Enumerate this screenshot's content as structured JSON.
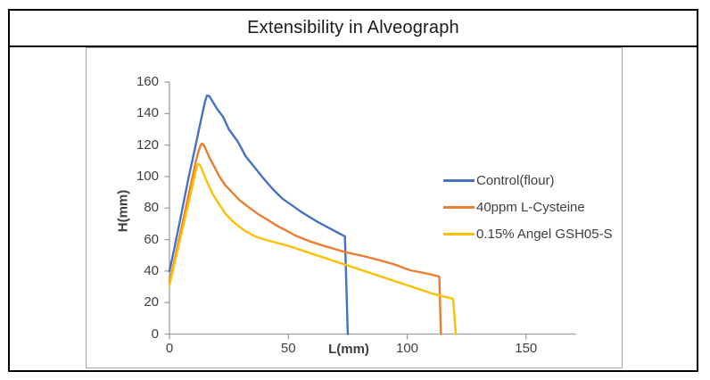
{
  "window": {
    "title": "Extensibility in Alveograph"
  },
  "chart_data": {
    "type": "line",
    "title": "Extensibility in Alveograph",
    "xlabel": "L(mm)",
    "ylabel": "H(mm)",
    "xlim": [
      0,
      171
    ],
    "ylim": [
      0,
      160
    ],
    "xticks": [
      0,
      50,
      100,
      150
    ],
    "yticks": [
      0,
      20,
      40,
      60,
      80,
      100,
      120,
      140,
      160
    ],
    "grid": false,
    "legend_position": "right-inside",
    "axis_color": "#9e9e9e",
    "text_color": "#404040",
    "series": [
      {
        "name": "Control(flour)",
        "color": "#4472C4",
        "peak": {
          "L": 16,
          "H": 151
        },
        "rupture_L": 75,
        "points": [
          [
            0,
            40
          ],
          [
            2,
            54
          ],
          [
            4,
            69
          ],
          [
            6,
            84
          ],
          [
            8,
            99
          ],
          [
            10,
            113
          ],
          [
            12,
            127
          ],
          [
            13,
            134
          ],
          [
            14,
            141
          ],
          [
            15,
            148
          ],
          [
            15.8,
            151.5
          ],
          [
            16.8,
            151
          ],
          [
            18,
            148
          ],
          [
            20,
            143
          ],
          [
            22.5,
            138
          ],
          [
            25,
            130
          ],
          [
            28.8,
            122
          ],
          [
            32,
            113
          ],
          [
            36.3,
            105
          ],
          [
            40,
            98
          ],
          [
            43.8,
            91.5
          ],
          [
            47.5,
            86
          ],
          [
            51.3,
            82
          ],
          [
            55,
            78
          ],
          [
            58.8,
            74.5
          ],
          [
            62.5,
            71
          ],
          [
            66.3,
            68
          ],
          [
            70,
            65
          ],
          [
            72.6,
            63
          ],
          [
            73.8,
            62
          ],
          [
            75,
            0
          ]
        ]
      },
      {
        "name": "40ppm L-Cysteine",
        "color": "#ED7D31",
        "peak": {
          "L": 13.6,
          "H": 121
        },
        "rupture_L": 114,
        "points": [
          [
            0,
            33
          ],
          [
            2,
            46
          ],
          [
            4,
            60
          ],
          [
            6,
            74
          ],
          [
            8,
            88
          ],
          [
            10,
            102
          ],
          [
            11,
            109
          ],
          [
            12,
            115
          ],
          [
            13,
            119.5
          ],
          [
            13.6,
            121
          ],
          [
            14.5,
            120
          ],
          [
            15.5,
            116.5
          ],
          [
            17,
            111.5
          ],
          [
            18.8,
            106.5
          ],
          [
            21,
            100
          ],
          [
            23.5,
            94.5
          ],
          [
            26.3,
            90
          ],
          [
            29.5,
            85
          ],
          [
            33.8,
            80
          ],
          [
            37.5,
            76
          ],
          [
            41.3,
            72.5
          ],
          [
            45,
            69
          ],
          [
            48.8,
            66
          ],
          [
            53,
            62.5
          ],
          [
            58.8,
            59
          ],
          [
            63.8,
            56.5
          ],
          [
            68.8,
            54.3
          ],
          [
            74,
            52
          ],
          [
            81.3,
            49.6
          ],
          [
            88,
            47
          ],
          [
            94,
            44.5
          ],
          [
            101.3,
            40.5
          ],
          [
            107,
            38.8
          ],
          [
            111,
            37.5
          ],
          [
            113.5,
            36.5
          ],
          [
            114.2,
            0
          ]
        ]
      },
      {
        "name": "0.15% Angel GSH05-S",
        "color": "#FFC000",
        "peak": {
          "L": 12,
          "H": 108
        },
        "rupture_L": 120.5,
        "points": [
          [
            0,
            31
          ],
          [
            2,
            44
          ],
          [
            4,
            57
          ],
          [
            6,
            70
          ],
          [
            8,
            83
          ],
          [
            9.5,
            93
          ],
          [
            10.7,
            101
          ],
          [
            11.5,
            106
          ],
          [
            12,
            108
          ],
          [
            12.8,
            107.5
          ],
          [
            13.8,
            104
          ],
          [
            15,
            99.5
          ],
          [
            16.3,
            95
          ],
          [
            18,
            89.5
          ],
          [
            20,
            84.5
          ],
          [
            23.8,
            76
          ],
          [
            27,
            71
          ],
          [
            31.3,
            66
          ],
          [
            36,
            62
          ],
          [
            40,
            60
          ],
          [
            45,
            58
          ],
          [
            50,
            56
          ],
          [
            57,
            52.5
          ],
          [
            64,
            49
          ],
          [
            71,
            45.5
          ],
          [
            78,
            42
          ],
          [
            85,
            38.5
          ],
          [
            92,
            35
          ],
          [
            99,
            31.5
          ],
          [
            105,
            28.5
          ],
          [
            110,
            26
          ],
          [
            114,
            24.3
          ],
          [
            117,
            23.2
          ],
          [
            119.3,
            22.3
          ],
          [
            120.5,
            0
          ]
        ]
      }
    ]
  }
}
